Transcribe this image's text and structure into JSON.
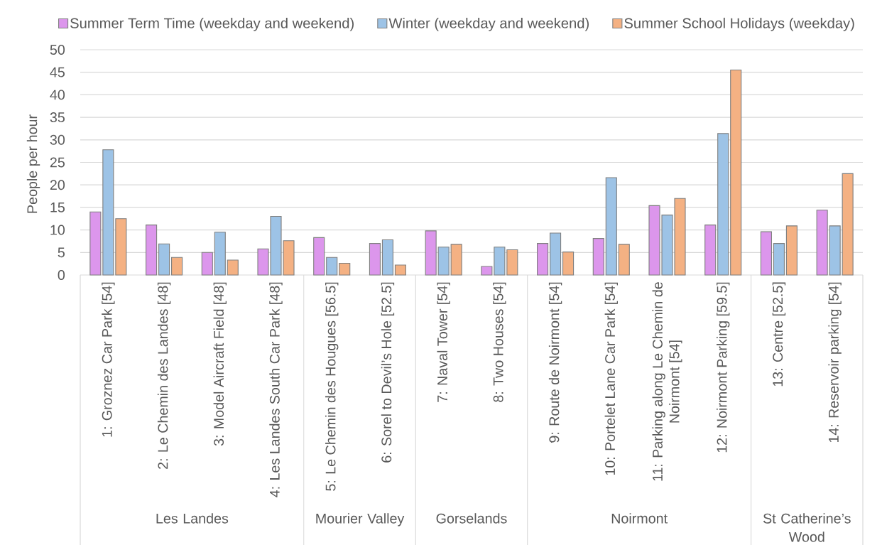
{
  "chart_data": {
    "type": "bar",
    "ylabel": "People per hour",
    "categories": [
      "1: Groznez Car Park [54]",
      "2: Le Chemin des Landes [48]",
      "3: Model Aircraft Field [48]",
      "4: Les Landes South Car Park [48]",
      "5: Le Chemin des Hougues [56.5]",
      "6: Sorel to Devil’s Hole [52.5]",
      "7: Naval Tower [54]",
      "8: Two Houses [54]",
      "9: Route de Noirmont [54]",
      "10: Portelet Lane Car Park [54]",
      "11: Parking along Le Chemin de Noirmont [54]",
      "12: Noirmont Parking [59.5]",
      "13: Centre [52.5]",
      "14: Reservoir parking [54]"
    ],
    "series": [
      {
        "name": "Summer Term Time (weekday and weekend)",
        "color": "#dc96ec",
        "values": [
          14,
          11.1,
          5,
          5.8,
          8.3,
          7,
          9.8,
          1.9,
          7,
          8.1,
          15.4,
          11.1,
          9.6,
          14.4
        ]
      },
      {
        "name": "Winter (weekday and weekend)",
        "color": "#9dc3e6",
        "values": [
          27.8,
          6.9,
          9.5,
          13,
          3.9,
          7.8,
          6.2,
          6.2,
          9.3,
          21.6,
          13.3,
          31.4,
          7,
          10.9
        ]
      },
      {
        "name": "Summer School Holidays (weekday)",
        "color": "#f4b183",
        "values": [
          12.5,
          3.9,
          3.3,
          7.6,
          2.6,
          2.2,
          6.8,
          5.6,
          5.1,
          6.8,
          17,
          45.5,
          10.9,
          22.5
        ]
      }
    ],
    "ylim": [
      0,
      50
    ],
    "yticks": [
      0,
      5,
      10,
      15,
      20,
      25,
      30,
      35,
      40,
      45,
      50
    ],
    "grid": "y",
    "legend": "top",
    "annotations": [
      "Les Landes",
      "Mourier Valley",
      "Gorselands",
      "Noirmont",
      "St Catherine’s Wood"
    ]
  }
}
